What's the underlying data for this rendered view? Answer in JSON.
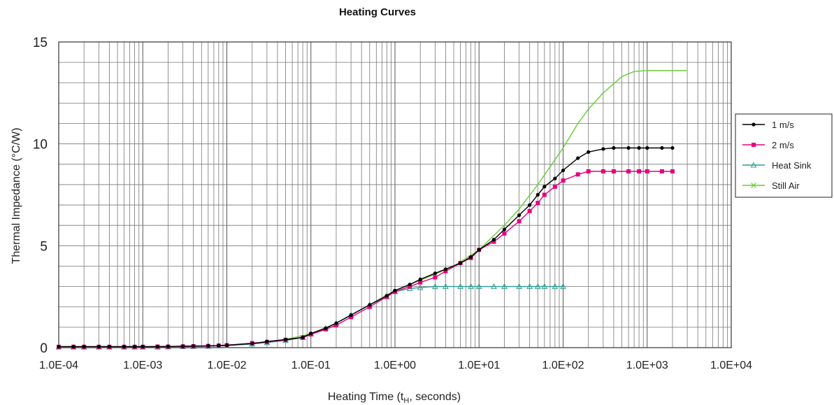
{
  "chart_data": {
    "type": "line",
    "title": "Heating Curves",
    "xlabel": "Heating Time (t",
    "xlabel_sub": "H",
    "xlabel_suffix": ", seconds)",
    "ylabel": "Thermal Impedance (°C/W)",
    "xscale": "log",
    "xlim": [
      0.0001,
      10000
    ],
    "ylim": [
      0,
      15
    ],
    "grid": true,
    "legend_position": "right",
    "x_ticks": [
      {
        "value": 0.0001,
        "label": "1.0E-04"
      },
      {
        "value": 0.001,
        "label": "1.0E-03"
      },
      {
        "value": 0.01,
        "label": "1.0E-02"
      },
      {
        "value": 0.1,
        "label": "1.0E-01"
      },
      {
        "value": 1,
        "label": "1.0E+00"
      },
      {
        "value": 10,
        "label": "1.0E+01"
      },
      {
        "value": 100,
        "label": "1.0E+02"
      },
      {
        "value": 1000,
        "label": "1.0E+03"
      },
      {
        "value": 10000,
        "label": "1.0E+04"
      }
    ],
    "y_ticks": [
      {
        "value": 0,
        "label": "0"
      },
      {
        "value": 5,
        "label": "5"
      },
      {
        "value": 10,
        "label": "10"
      },
      {
        "value": 15,
        "label": "15"
      }
    ],
    "series": [
      {
        "name": "1 m/s",
        "color": "#000000",
        "marker": "circle",
        "points": [
          [
            0.0001,
            0.05
          ],
          [
            0.00015,
            0.05
          ],
          [
            0.0002,
            0.05
          ],
          [
            0.0003,
            0.05
          ],
          [
            0.0004,
            0.05
          ],
          [
            0.0006,
            0.05
          ],
          [
            0.0008,
            0.05
          ],
          [
            0.001,
            0.05
          ],
          [
            0.0015,
            0.05
          ],
          [
            0.002,
            0.06
          ],
          [
            0.003,
            0.07
          ],
          [
            0.004,
            0.08
          ],
          [
            0.006,
            0.09
          ],
          [
            0.008,
            0.1
          ],
          [
            0.01,
            0.12
          ],
          [
            0.02,
            0.2
          ],
          [
            0.03,
            0.3
          ],
          [
            0.05,
            0.4
          ],
          [
            0.08,
            0.5
          ],
          [
            0.1,
            0.7
          ],
          [
            0.15,
            0.95
          ],
          [
            0.2,
            1.2
          ],
          [
            0.3,
            1.6
          ],
          [
            0.5,
            2.1
          ],
          [
            0.8,
            2.55
          ],
          [
            1,
            2.8
          ],
          [
            1.5,
            3.1
          ],
          [
            2,
            3.35
          ],
          [
            3,
            3.65
          ],
          [
            4,
            3.85
          ],
          [
            6,
            4.15
          ],
          [
            8,
            4.45
          ],
          [
            10,
            4.8
          ],
          [
            15,
            5.3
          ],
          [
            20,
            5.8
          ],
          [
            30,
            6.5
          ],
          [
            40,
            7.0
          ],
          [
            50,
            7.5
          ],
          [
            60,
            7.9
          ],
          [
            80,
            8.3
          ],
          [
            100,
            8.7
          ],
          [
            150,
            9.3
          ],
          [
            200,
            9.6
          ],
          [
            300,
            9.75
          ],
          [
            400,
            9.8
          ],
          [
            600,
            9.8
          ],
          [
            800,
            9.8
          ],
          [
            1000,
            9.8
          ],
          [
            1500,
            9.8
          ],
          [
            2000,
            9.8
          ]
        ]
      },
      {
        "name": "2 m/s",
        "color": "#e6007e",
        "marker": "square",
        "points": [
          [
            0.0001,
            0.04
          ],
          [
            0.00015,
            0.04
          ],
          [
            0.0002,
            0.04
          ],
          [
            0.0003,
            0.04
          ],
          [
            0.0004,
            0.04
          ],
          [
            0.0006,
            0.04
          ],
          [
            0.0008,
            0.04
          ],
          [
            0.001,
            0.04
          ],
          [
            0.0015,
            0.05
          ],
          [
            0.002,
            0.05
          ],
          [
            0.003,
            0.06
          ],
          [
            0.004,
            0.07
          ],
          [
            0.006,
            0.08
          ],
          [
            0.008,
            0.1
          ],
          [
            0.01,
            0.12
          ],
          [
            0.02,
            0.22
          ],
          [
            0.03,
            0.28
          ],
          [
            0.05,
            0.38
          ],
          [
            0.08,
            0.5
          ],
          [
            0.1,
            0.65
          ],
          [
            0.15,
            0.9
          ],
          [
            0.2,
            1.1
          ],
          [
            0.3,
            1.5
          ],
          [
            0.5,
            2.0
          ],
          [
            0.8,
            2.5
          ],
          [
            1,
            2.75
          ],
          [
            1.5,
            3.0
          ],
          [
            2,
            3.2
          ],
          [
            3,
            3.45
          ],
          [
            4,
            3.75
          ],
          [
            6,
            4.15
          ],
          [
            8,
            4.4
          ],
          [
            10,
            4.8
          ],
          [
            15,
            5.2
          ],
          [
            20,
            5.6
          ],
          [
            30,
            6.2
          ],
          [
            40,
            6.7
          ],
          [
            50,
            7.1
          ],
          [
            60,
            7.5
          ],
          [
            80,
            7.9
          ],
          [
            100,
            8.2
          ],
          [
            150,
            8.5
          ],
          [
            200,
            8.65
          ],
          [
            300,
            8.65
          ],
          [
            400,
            8.65
          ],
          [
            600,
            8.65
          ],
          [
            800,
            8.65
          ],
          [
            1000,
            8.65
          ],
          [
            1500,
            8.65
          ],
          [
            2000,
            8.65
          ]
        ]
      },
      {
        "name": "Heat Sink",
        "color": "#2a9d8f",
        "marker": "triangle",
        "points": [
          [
            0.0001,
            0.03
          ],
          [
            0.00015,
            0.03
          ],
          [
            0.0002,
            0.03
          ],
          [
            0.0003,
            0.03
          ],
          [
            0.0004,
            0.03
          ],
          [
            0.0006,
            0.03
          ],
          [
            0.0008,
            0.03
          ],
          [
            0.001,
            0.03
          ],
          [
            0.0015,
            0.03
          ],
          [
            0.002,
            0.04
          ],
          [
            0.003,
            0.05
          ],
          [
            0.004,
            0.06
          ],
          [
            0.006,
            0.07
          ],
          [
            0.008,
            0.09
          ],
          [
            0.01,
            0.1
          ],
          [
            0.02,
            0.18
          ],
          [
            0.03,
            0.25
          ],
          [
            0.05,
            0.35
          ],
          [
            0.08,
            0.5
          ],
          [
            0.1,
            0.68
          ],
          [
            0.15,
            0.95
          ],
          [
            0.2,
            1.2
          ],
          [
            0.3,
            1.6
          ],
          [
            0.5,
            2.1
          ],
          [
            0.8,
            2.5
          ],
          [
            1,
            2.75
          ],
          [
            1.5,
            2.9
          ],
          [
            2,
            2.95
          ],
          [
            3,
            3.0
          ],
          [
            4,
            3.0
          ],
          [
            6,
            3.0
          ],
          [
            8,
            3.0
          ],
          [
            10,
            3.0
          ],
          [
            15,
            3.0
          ],
          [
            20,
            3.0
          ],
          [
            30,
            3.0
          ],
          [
            40,
            3.0
          ],
          [
            50,
            3.0
          ],
          [
            60,
            3.0
          ],
          [
            80,
            3.0
          ],
          [
            100,
            3.0
          ]
        ]
      },
      {
        "name": "Still Air",
        "color": "#66cc33",
        "marker": "x",
        "points": [
          [
            0.0001,
            0.03
          ],
          [
            0.001,
            0.04
          ],
          [
            0.01,
            0.1
          ],
          [
            0.02,
            0.2
          ],
          [
            0.05,
            0.4
          ],
          [
            0.1,
            0.68
          ],
          [
            0.2,
            1.2
          ],
          [
            0.5,
            2.1
          ],
          [
            1,
            2.8
          ],
          [
            2,
            3.3
          ],
          [
            5,
            4.0
          ],
          [
            10,
            4.8
          ],
          [
            20,
            6.0
          ],
          [
            30,
            6.8
          ],
          [
            50,
            8.0
          ],
          [
            100,
            9.8
          ],
          [
            150,
            11.0
          ],
          [
            200,
            11.7
          ],
          [
            300,
            12.5
          ],
          [
            500,
            13.3
          ],
          [
            700,
            13.55
          ],
          [
            1000,
            13.6
          ],
          [
            2000,
            13.6
          ],
          [
            3000,
            13.6
          ]
        ]
      }
    ]
  }
}
